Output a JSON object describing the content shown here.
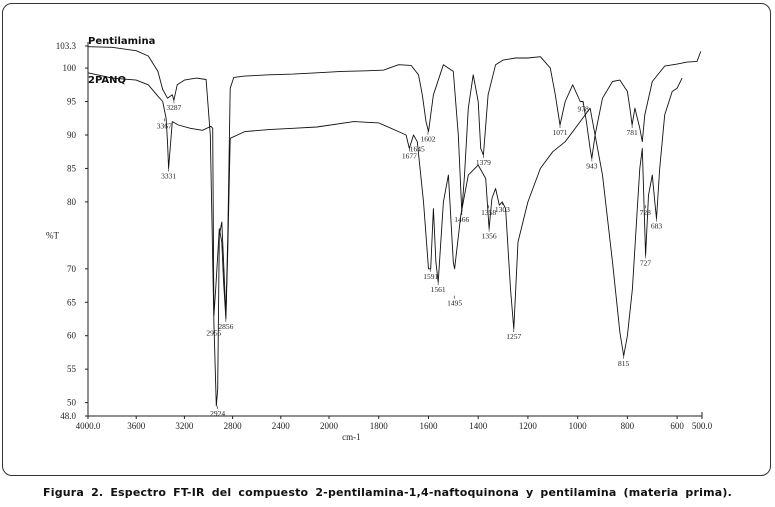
{
  "caption": "Figura 2. Espectro FT-IR del compuesto 2-pentilamina-1,4-naftoquinona y pentilamina (materia prima).",
  "chart_data": {
    "type": "line",
    "xlabel": "cm-1",
    "ylabel": "%T",
    "xlim": [
      4000.0,
      500.0
    ],
    "ylim": [
      48.0,
      103.3
    ],
    "x_ticks": [
      "4000.0",
      "3600",
      "3200",
      "2800",
      "2400",
      "2000",
      "1800",
      "1600",
      "1400",
      "1200",
      "1000",
      "800",
      "600",
      "500.0"
    ],
    "y_ticks": [
      "103.3",
      "100",
      "95",
      "90",
      "85",
      "80",
      "%T",
      "70",
      "65",
      "60",
      "55",
      "50",
      "48.0"
    ],
    "grid": false,
    "series": [
      {
        "name": "Pentilamina",
        "x": [
          4000,
          3800,
          3600,
          3500,
          3420,
          3380,
          3340,
          3300,
          3287,
          3260,
          3200,
          3100,
          3020,
          2985,
          2955,
          2935,
          2924,
          2910,
          2890,
          2872,
          2856,
          2840,
          2820,
          2790,
          2700,
          2500,
          2300,
          2100,
          1950,
          1850,
          1780,
          1720,
          1670,
          1640,
          1625,
          1610,
          1600,
          1580,
          1540,
          1500,
          1480,
          1466,
          1455,
          1440,
          1420,
          1400,
          1390,
          1379,
          1360,
          1330,
          1300,
          1250,
          1200,
          1150,
          1110,
          1090,
          1071,
          1050,
          1020,
          990,
          978,
          965,
          950,
          943,
          930,
          900,
          860,
          830,
          800,
          790,
          781,
          770,
          750,
          740,
          730,
          700,
          650,
          600,
          560,
          520,
          505
        ],
        "y": [
          103.2,
          103.1,
          102.6,
          101.8,
          99.5,
          96.8,
          95.5,
          96.0,
          95.2,
          97.5,
          98.2,
          98.5,
          98.3,
          90.0,
          62.0,
          49.5,
          52.0,
          75.0,
          77.0,
          70.0,
          63.0,
          75.0,
          97.0,
          98.6,
          98.8,
          99.0,
          99.1,
          99.3,
          99.5,
          99.6,
          99.7,
          100.5,
          100.4,
          99.0,
          96.0,
          92.0,
          90.5,
          96.0,
          100.5,
          99.5,
          90.0,
          78.5,
          84.0,
          94.0,
          99.0,
          95.0,
          88.0,
          87.0,
          96.0,
          100.5,
          101.2,
          101.5,
          101.5,
          101.7,
          100.0,
          96.0,
          91.5,
          95.0,
          97.5,
          95.0,
          95.0,
          92.0,
          88.0,
          86.5,
          90.0,
          95.5,
          98.0,
          98.2,
          96.5,
          94.0,
          91.5,
          94.0,
          91.0,
          89.0,
          93.0,
          98.0,
          100.3,
          100.6,
          100.9,
          101.0,
          102.5
        ]
      },
      {
        "name": "2PANQ",
        "x": [
          4000,
          3800,
          3600,
          3500,
          3420,
          3380,
          3352,
          3340,
          3331,
          3300,
          3250,
          3150,
          3050,
          2980,
          2965,
          2955,
          2940,
          2910,
          2890,
          2875,
          2856,
          2840,
          2820,
          2700,
          2500,
          2300,
          2100,
          1900,
          1800,
          1720,
          1690,
          1677,
          1660,
          1645,
          1620,
          1600,
          1591,
          1580,
          1570,
          1561,
          1540,
          1520,
          1500,
          1495,
          1470,
          1440,
          1400,
          1370,
          1356,
          1345,
          1330,
          1315,
          1303,
          1290,
          1270,
          1257,
          1240,
          1200,
          1150,
          1100,
          1050,
          1000,
          950,
          900,
          860,
          830,
          815,
          800,
          780,
          760,
          750,
          740,
          727,
          715,
          700,
          690,
          683,
          670,
          650,
          620,
          600,
          580
        ],
        "y": [
          99.3,
          98.5,
          98.2,
          97.5,
          95.8,
          95.0,
          92.5,
          89.0,
          85.0,
          92.0,
          91.5,
          91.0,
          90.7,
          91.3,
          91.0,
          63.0,
          67.0,
          76.0,
          74.0,
          68.0,
          62.5,
          73.0,
          89.5,
          90.5,
          90.8,
          91.0,
          91.2,
          92.0,
          91.8,
          90.5,
          90.0,
          88.0,
          90.0,
          89.0,
          80.0,
          70.0,
          70.0,
          79.0,
          71.0,
          68.0,
          80.0,
          84.0,
          71.0,
          70.0,
          78.0,
          84.0,
          85.5,
          83.5,
          76.0,
          80.5,
          82.0,
          79.5,
          80.0,
          79.0,
          67.0,
          61.0,
          74.0,
          80.0,
          85.0,
          87.5,
          89.0,
          91.5,
          94.0,
          84.0,
          71.0,
          60.5,
          57.0,
          60.0,
          67.0,
          79.0,
          85.0,
          88.0,
          72.0,
          81.0,
          84.0,
          80.0,
          77.5,
          85.0,
          93.0,
          96.5,
          97.0,
          98.5
        ]
      }
    ],
    "peak_labels": [
      {
        "text": "3331",
        "x": 3331,
        "y": 85.0
      },
      {
        "text": "3287",
        "x": 3287,
        "y": 95.2
      },
      {
        "text": "3367",
        "x": 3367,
        "y": 92.5
      },
      {
        "text": "2955",
        "x": 2955,
        "y": 61.5
      },
      {
        "text": "2924",
        "x": 2924,
        "y": 49.5
      },
      {
        "text": "2856",
        "x": 2856,
        "y": 62.5
      },
      {
        "text": "1677",
        "x": 1677,
        "y": 88.0
      },
      {
        "text": "1645",
        "x": 1645,
        "y": 89.0
      },
      {
        "text": "1602",
        "x": 1602,
        "y": 90.5
      },
      {
        "text": "1591",
        "x": 1591,
        "y": 70.0
      },
      {
        "text": "1561",
        "x": 1561,
        "y": 68.0
      },
      {
        "text": "1495",
        "x": 1495,
        "y": 66.0
      },
      {
        "text": "1466",
        "x": 1466,
        "y": 78.5
      },
      {
        "text": "1379",
        "x": 1379,
        "y": 87.0
      },
      {
        "text": "1358",
        "x": 1358,
        "y": 79.5
      },
      {
        "text": "1356",
        "x": 1356,
        "y": 76.0
      },
      {
        "text": "1303",
        "x": 1303,
        "y": 80.0
      },
      {
        "text": "1257",
        "x": 1257,
        "y": 61.0
      },
      {
        "text": "1071",
        "x": 1071,
        "y": 91.5
      },
      {
        "text": "978",
        "x": 978,
        "y": 95.0
      },
      {
        "text": "943",
        "x": 943,
        "y": 86.5
      },
      {
        "text": "815",
        "x": 815,
        "y": 57.0
      },
      {
        "text": "781",
        "x": 781,
        "y": 91.5
      },
      {
        "text": "727",
        "x": 727,
        "y": 72.0
      },
      {
        "text": "728",
        "x": 728,
        "y": 79.5
      },
      {
        "text": "683",
        "x": 683,
        "y": 77.5
      }
    ]
  }
}
